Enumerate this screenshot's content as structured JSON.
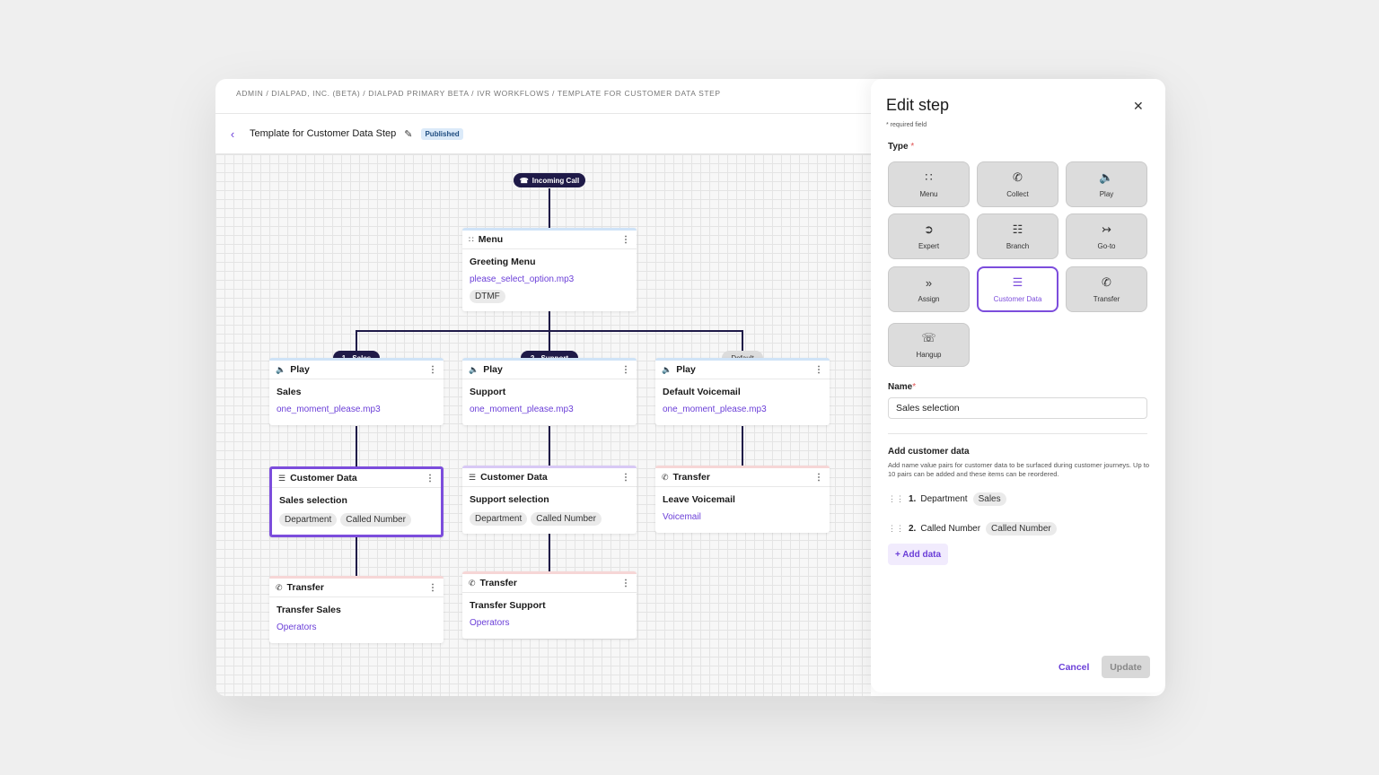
{
  "breadcrumb": "Admin / Dialpad, Inc. (Beta) / Dialpad Primary Beta / IVR Workflows / Template for Customer Data Step",
  "header": {
    "title": "Template for Customer Data Step",
    "status": "Published"
  },
  "canvas": {
    "start_label": "Incoming Call",
    "menu_node": {
      "type": "Menu",
      "title": "Greeting Menu",
      "file": "please_select_option.mp3",
      "chip": "DTMF"
    },
    "branches": [
      "1 - Sales",
      "2 - Support",
      "Default"
    ],
    "play_nodes": [
      {
        "type": "Play",
        "title": "Sales",
        "file": "one_moment_please.mp3"
      },
      {
        "type": "Play",
        "title": "Support",
        "file": "one_moment_please.mp3"
      },
      {
        "type": "Play",
        "title": "Default Voicemail",
        "file": "one_moment_please.mp3"
      }
    ],
    "data_nodes": [
      {
        "type": "Customer Data",
        "title": "Sales selection",
        "chips": [
          "Department",
          "Called Number"
        ]
      },
      {
        "type": "Customer Data",
        "title": "Support selection",
        "chips": [
          "Department",
          "Called Number"
        ]
      },
      {
        "type": "Transfer",
        "title": "Leave Voicemail",
        "link": "Voicemail"
      }
    ],
    "transfer_nodes": [
      {
        "type": "Transfer",
        "title": "Transfer Sales",
        "link": "Operators"
      },
      {
        "type": "Transfer",
        "title": "Transfer Support",
        "link": "Operators"
      }
    ]
  },
  "panel": {
    "title": "Edit step",
    "required_note": "* required field",
    "type_label": "Type",
    "types": [
      "Menu",
      "Collect",
      "Play",
      "Expert",
      "Branch",
      "Go-to",
      "Assign",
      "Customer Data",
      "Transfer",
      "Hangup"
    ],
    "selected_type": "Customer Data",
    "name_label": "Name",
    "name_value": "Sales selection",
    "add_section_title": "Add customer data",
    "add_section_help": "Add name value pairs for customer data to be surfaced during customer journeys. Up to 10 pairs can be added and these items can be reordered.",
    "data_items": [
      {
        "num": "1.",
        "name": "Department",
        "value": "Sales"
      },
      {
        "num": "2.",
        "name": "Called Number",
        "value": "Called Number"
      }
    ],
    "add_button": "+ Add data",
    "cancel_button": "Cancel",
    "update_button": "Update"
  },
  "colors": {
    "accent": "#7c4ddc",
    "navy": "#1f1a48",
    "published_bg": "#dbeaf9"
  }
}
